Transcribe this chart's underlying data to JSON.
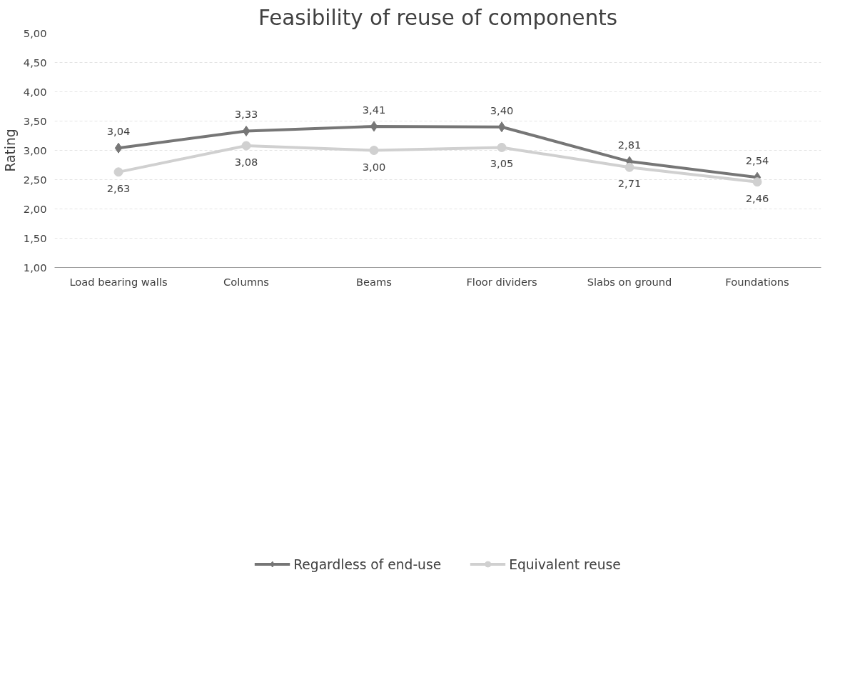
{
  "chart_data": {
    "type": "line",
    "title": "Feasibility of reuse of components",
    "ylabel": "Rating",
    "categories": [
      "Load bearing walls",
      "Columns",
      "Beams",
      "Floor dividers",
      "Slabs on ground",
      "Foundations"
    ],
    "series": [
      {
        "name": "Regardless of end-use",
        "color": "#767676",
        "marker": "diamond",
        "values": [
          3.04,
          3.33,
          3.41,
          3.4,
          2.81,
          2.54
        ],
        "value_labels": [
          "3,04",
          "3,33",
          "3,41",
          "3,40",
          "2,81",
          "2,54"
        ]
      },
      {
        "name": "Equivalent reuse",
        "color": "#d0d0d0",
        "marker": "circle",
        "values": [
          2.63,
          3.08,
          3.0,
          3.05,
          2.71,
          2.46
        ],
        "value_labels": [
          "2,63",
          "3,08",
          "3,00",
          "3,05",
          "2,71",
          "2,46"
        ]
      }
    ],
    "ylim": [
      1,
      5
    ],
    "yticks": [
      {
        "value": 1,
        "label": "1,00"
      },
      {
        "value": 1.5,
        "label": "1,50"
      },
      {
        "value": 2,
        "label": "2,00"
      },
      {
        "value": 2.5,
        "label": "2,50"
      },
      {
        "value": 3,
        "label": "3,00"
      },
      {
        "value": 3.5,
        "label": "3,50"
      },
      {
        "value": 4,
        "label": "4,00"
      },
      {
        "value": 4.5,
        "label": "4,50"
      },
      {
        "value": 5,
        "label": "5,00"
      }
    ],
    "grid": "y",
    "legend": "bottom",
    "line_style": "solid"
  }
}
